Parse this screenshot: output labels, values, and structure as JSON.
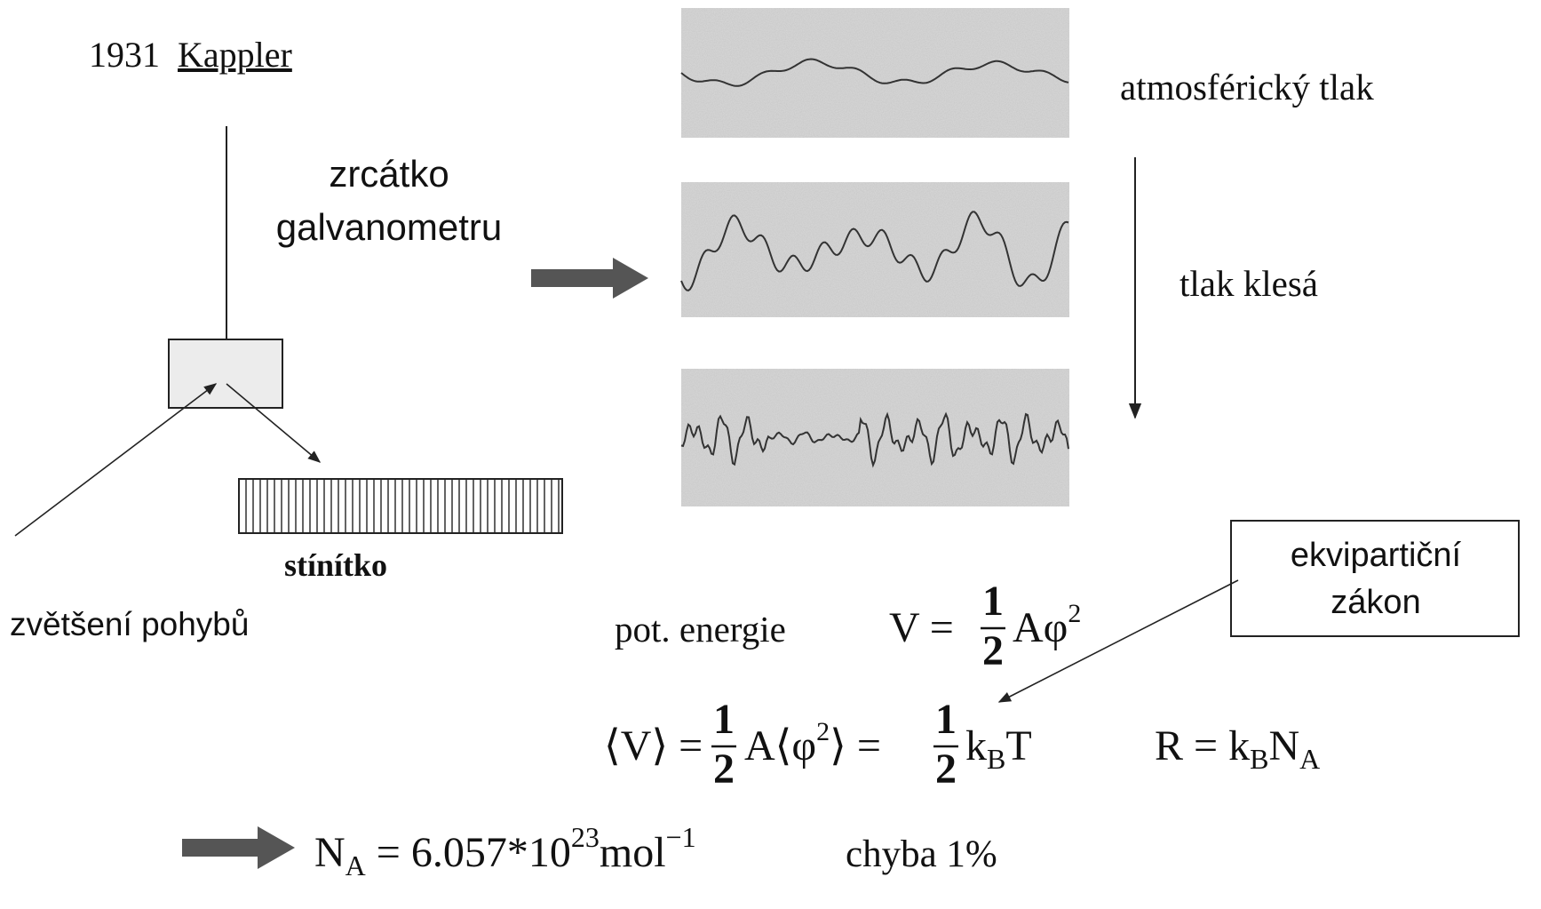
{
  "header": {
    "year": "1931",
    "name": "Kappler"
  },
  "labels": {
    "mirror": [
      "zrcátko",
      "galvanometru"
    ],
    "screen": "stínítko",
    "magnification": "zvětšení pohybů",
    "pressure": "atmosférický tlak",
    "pressure_drop": "tlak klesá",
    "callout": [
      "ekvipartiční",
      "zákon"
    ],
    "pot_energy": "pot. energie",
    "error": "chyba 1%"
  },
  "formulas": {
    "potential": {
      "lhs": "V =",
      "num": "1",
      "den": "2",
      "rest": "Aφ",
      "sup": "2"
    },
    "mean": {
      "lhs": "⟨V⟩ =",
      "num1": "1",
      "den1": "2",
      "mid": "A⟨φ",
      "sup": "2",
      "eq": "⟩ =",
      "num2": "1",
      "den2": "2",
      "k": "k",
      "sub": "B",
      "t": "T"
    },
    "gas": {
      "lhs": "R = k",
      "sub1": "B",
      "n": "N",
      "sub2": "A"
    },
    "result": {
      "n": "N",
      "sub": "A",
      "eq": " = 6.057*10",
      "exp": "23",
      "unit": "mol",
      "unit_exp": "−1"
    }
  }
}
